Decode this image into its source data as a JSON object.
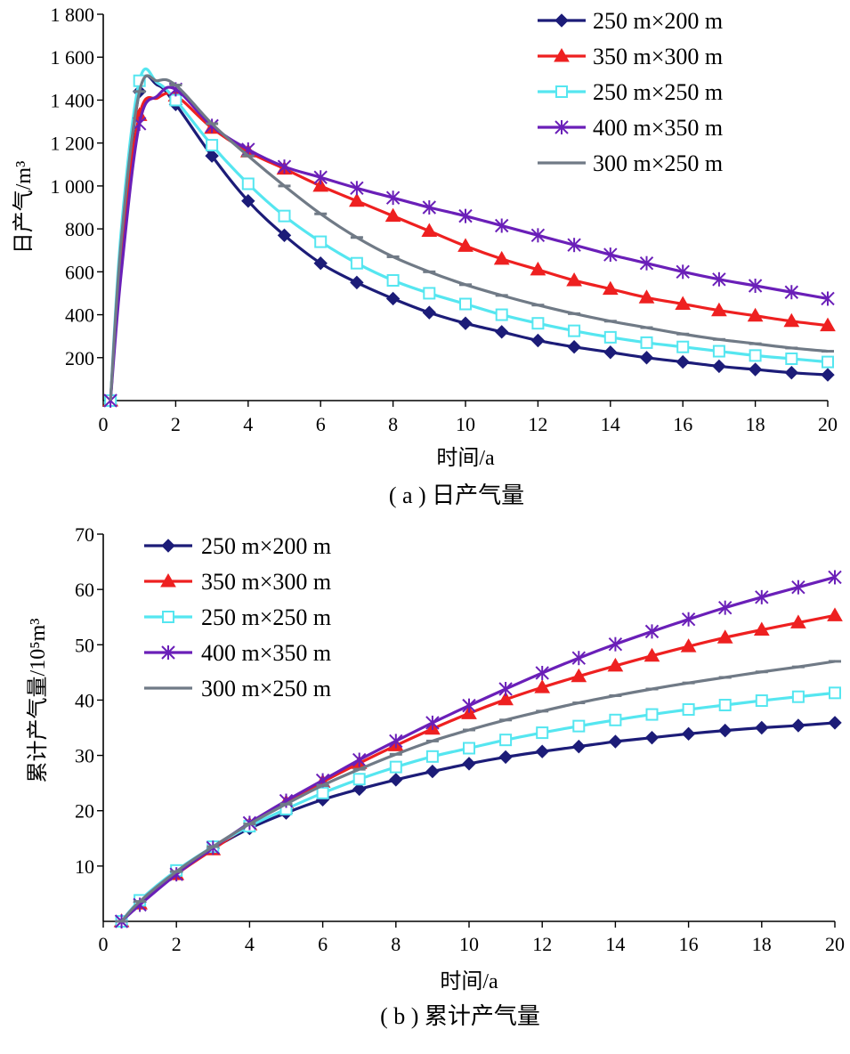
{
  "colors": {
    "250x200": "#1c1c78",
    "350x300": "#ee2020",
    "250x250": "#55e6f0",
    "400x350": "#6a1fb8",
    "300x250": "#707a86"
  },
  "chart_data": [
    {
      "type": "line",
      "caption": "( a ) 日产气量",
      "xlabel": "时间/a",
      "ylabel": "日产气/m³",
      "xlim": [
        0,
        20
      ],
      "ylim": [
        0,
        1800
      ],
      "xticks": [
        0,
        2,
        4,
        6,
        8,
        10,
        12,
        14,
        16,
        18,
        20
      ],
      "xtick_labels": [
        "0",
        "2",
        "4",
        "6",
        "8",
        "10",
        "12",
        "14",
        "16",
        "18",
        "20"
      ],
      "yticks": [
        200,
        400,
        600,
        800,
        1000,
        1200,
        1400,
        1600,
        1800
      ],
      "ytick_labels": [
        "200",
        "400",
        "600",
        "800",
        "1 000",
        "1 200",
        "1 400",
        "1 600",
        "1 800"
      ],
      "legend_position": "top-right",
      "series": [
        {
          "name": "250 m×200 m",
          "color_key": "250x200",
          "marker": "diamond",
          "x": [
            0.2,
            0.5,
            1,
            1.5,
            2,
            3,
            4,
            5,
            6,
            7,
            8,
            9,
            10,
            11,
            12,
            13,
            14,
            15,
            16,
            17,
            18,
            19,
            20
          ],
          "y": [
            0,
            700,
            1440,
            1470,
            1380,
            1140,
            930,
            770,
            640,
            550,
            475,
            410,
            360,
            320,
            280,
            250,
            225,
            200,
            180,
            160,
            145,
            130,
            120
          ],
          "marker_x": [
            0.2,
            1,
            2,
            3,
            4,
            5,
            6,
            7,
            8,
            9,
            10,
            11,
            12,
            13,
            14,
            15,
            16,
            17,
            18,
            19,
            20
          ]
        },
        {
          "name": "350 m×300 m",
          "color_key": "350x300",
          "marker": "triangle",
          "x": [
            0.2,
            0.5,
            1,
            1.5,
            2,
            3,
            4,
            5,
            6,
            7,
            8,
            9,
            10,
            11,
            12,
            13,
            14,
            15,
            16,
            17,
            18,
            19,
            20
          ],
          "y": [
            0,
            700,
            1330,
            1410,
            1420,
            1270,
            1160,
            1080,
            1000,
            930,
            860,
            790,
            720,
            660,
            610,
            560,
            520,
            480,
            450,
            420,
            395,
            370,
            350
          ],
          "marker_x": [
            0.2,
            1,
            2,
            3,
            4,
            5,
            6,
            7,
            8,
            9,
            10,
            11,
            12,
            13,
            14,
            15,
            16,
            17,
            18,
            19,
            20
          ]
        },
        {
          "name": "250 m×250 m",
          "color_key": "250x250",
          "marker": "square",
          "x": [
            0.2,
            0.5,
            1,
            1.5,
            2,
            3,
            4,
            5,
            6,
            7,
            8,
            9,
            10,
            11,
            12,
            13,
            14,
            15,
            16,
            17,
            18,
            19,
            20
          ],
          "y": [
            0,
            800,
            1490,
            1480,
            1400,
            1190,
            1010,
            860,
            740,
            640,
            560,
            500,
            450,
            400,
            360,
            325,
            295,
            270,
            250,
            230,
            210,
            195,
            180
          ],
          "marker_x": [
            0.2,
            1,
            2,
            3,
            4,
            5,
            6,
            7,
            8,
            9,
            10,
            11,
            12,
            13,
            14,
            15,
            16,
            17,
            18,
            19,
            20
          ]
        },
        {
          "name": "400 m×350 m",
          "color_key": "400x350",
          "marker": "asterisk",
          "x": [
            0.2,
            0.5,
            1,
            1.5,
            2,
            3,
            4,
            5,
            6,
            7,
            8,
            9,
            10,
            11,
            12,
            13,
            14,
            15,
            16,
            17,
            18,
            19,
            20
          ],
          "y": [
            0,
            600,
            1290,
            1420,
            1450,
            1280,
            1170,
            1090,
            1040,
            990,
            945,
            900,
            860,
            815,
            770,
            725,
            680,
            640,
            600,
            565,
            535,
            505,
            475
          ],
          "marker_x": [
            0.2,
            1,
            2,
            3,
            4,
            5,
            6,
            7,
            8,
            9,
            10,
            11,
            12,
            13,
            14,
            15,
            16,
            17,
            18,
            19,
            20
          ]
        },
        {
          "name": "300 m×250 m",
          "color_key": "300x250",
          "marker": "dash",
          "x": [
            0.2,
            0.5,
            1,
            1.5,
            2,
            3,
            4,
            5,
            6,
            7,
            8,
            9,
            10,
            11,
            12,
            13,
            14,
            15,
            16,
            17,
            18,
            19,
            20
          ],
          "y": [
            0,
            750,
            1440,
            1490,
            1470,
            1290,
            1140,
            1000,
            870,
            760,
            670,
            600,
            540,
            490,
            445,
            405,
            370,
            340,
            310,
            285,
            265,
            245,
            230
          ],
          "marker_x": [
            1,
            2,
            3,
            4,
            5,
            6,
            7,
            8,
            9,
            10,
            11,
            12,
            13,
            14,
            15,
            16,
            17,
            18,
            19,
            20
          ]
        }
      ]
    },
    {
      "type": "line",
      "caption": "( b ) 累计产气量",
      "xlabel": "时间/a",
      "ylabel": "累计产气量/10⁵m³",
      "xlim": [
        0,
        20
      ],
      "ylim": [
        0,
        70
      ],
      "xticks": [
        0,
        2,
        4,
        6,
        8,
        10,
        12,
        14,
        16,
        18,
        20
      ],
      "xtick_labels": [
        "0",
        "2",
        "4",
        "6",
        "8",
        "10",
        "12",
        "14",
        "16",
        "18",
        "20"
      ],
      "yticks": [
        10,
        20,
        30,
        40,
        50,
        60,
        70
      ],
      "ytick_labels": [
        "10",
        "20",
        "30",
        "40",
        "50",
        "60",
        "70"
      ],
      "legend_position": "top-left",
      "series": [
        {
          "name": "250 m×200 m",
          "color_key": "250x200",
          "marker": "diamond",
          "x": [
            0.5,
            1,
            2,
            3,
            4,
            5,
            6,
            7,
            8,
            9,
            10,
            11,
            12,
            13,
            14,
            15,
            16,
            17,
            18,
            19,
            20
          ],
          "y": [
            0,
            3.5,
            9,
            13.2,
            16.8,
            19.6,
            22,
            23.9,
            25.6,
            27.1,
            28.5,
            29.7,
            30.7,
            31.6,
            32.5,
            33.2,
            33.9,
            34.5,
            35,
            35.4,
            35.9
          ]
        },
        {
          "name": "350 m×300 m",
          "color_key": "350x300",
          "marker": "triangle",
          "x": [
            0.5,
            1,
            2,
            3,
            4,
            5,
            6,
            7,
            8,
            9,
            10,
            11,
            12,
            13,
            14,
            15,
            16,
            17,
            18,
            19,
            20
          ],
          "y": [
            0,
            3.2,
            8.5,
            13,
            17.5,
            21.5,
            25.2,
            28.6,
            31.8,
            34.8,
            37.6,
            40.1,
            42.3,
            44.3,
            46.2,
            48,
            49.7,
            51.3,
            52.7,
            54,
            55.3
          ]
        },
        {
          "name": "250 m×250 m",
          "color_key": "250x250",
          "marker": "square",
          "x": [
            0.5,
            1,
            2,
            3,
            4,
            5,
            6,
            7,
            8,
            9,
            10,
            11,
            12,
            13,
            14,
            15,
            16,
            17,
            18,
            19,
            20
          ],
          "y": [
            0,
            3.8,
            9.2,
            13.5,
            17.2,
            20.3,
            23.2,
            25.7,
            27.9,
            29.8,
            31.3,
            32.8,
            34.1,
            35.3,
            36.4,
            37.4,
            38.3,
            39.1,
            39.9,
            40.6,
            41.3
          ]
        },
        {
          "name": "400 m×350 m",
          "color_key": "400x350",
          "marker": "asterisk",
          "x": [
            0.5,
            1,
            2,
            3,
            4,
            5,
            6,
            7,
            8,
            9,
            10,
            11,
            12,
            13,
            14,
            15,
            16,
            17,
            18,
            19,
            20
          ],
          "y": [
            0,
            3,
            8.5,
            13.3,
            17.8,
            21.8,
            25.5,
            29.2,
            32.6,
            35.9,
            39,
            42,
            44.9,
            47.6,
            50.1,
            52.4,
            54.6,
            56.7,
            58.6,
            60.4,
            62.2
          ]
        },
        {
          "name": "300 m×250 m",
          "color_key": "300x250",
          "marker": "dash",
          "x": [
            0.5,
            1,
            2,
            3,
            4,
            5,
            6,
            7,
            8,
            9,
            10,
            11,
            12,
            13,
            14,
            15,
            16,
            17,
            18,
            19,
            20
          ],
          "y": [
            0,
            3.6,
            9,
            13.5,
            17.6,
            21.2,
            24.6,
            27.5,
            30.2,
            32.6,
            34.6,
            36.4,
            38,
            39.5,
            40.8,
            42,
            43.1,
            44.1,
            45.1,
            46,
            47
          ]
        }
      ]
    }
  ]
}
